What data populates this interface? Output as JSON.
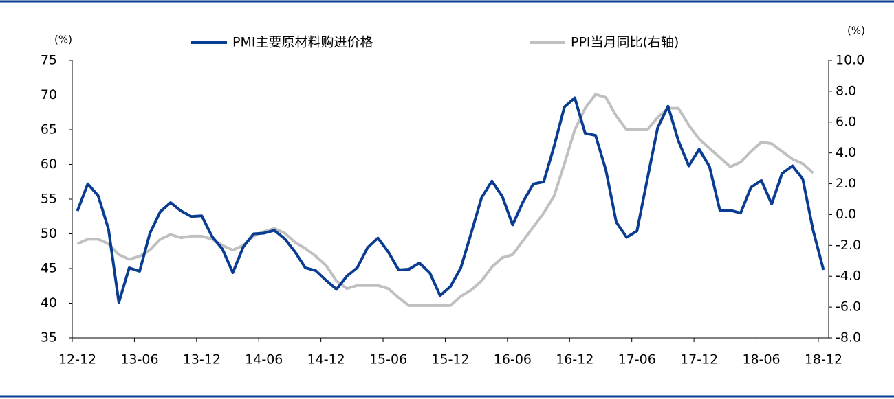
{
  "chart_data": {
    "type": "line",
    "y_unit": "(%)",
    "y2_unit": "(%)",
    "categories": [
      "12-12",
      null,
      null,
      null,
      null,
      null,
      "13-06",
      null,
      null,
      null,
      null,
      null,
      "13-12",
      null,
      null,
      null,
      null,
      null,
      "14-06",
      null,
      null,
      null,
      null,
      null,
      "14-12",
      null,
      null,
      null,
      null,
      null,
      "15-06",
      null,
      null,
      null,
      null,
      null,
      "15-12",
      null,
      null,
      null,
      null,
      null,
      "16-06",
      null,
      null,
      null,
      null,
      null,
      "16-12",
      null,
      null,
      null,
      null,
      null,
      "17-06",
      null,
      null,
      null,
      null,
      null,
      "17-12",
      null,
      null,
      null,
      null,
      null,
      "18-06",
      null,
      null,
      null,
      null,
      null,
      "18-12"
    ],
    "series": [
      {
        "name": "PMI主要原材料购进价格",
        "color": "#0a3d91",
        "axis": "y",
        "values": [
          53.3,
          57.2,
          55.5,
          50.7,
          40.1,
          45.1,
          44.6,
          50.1,
          53.2,
          54.5,
          53.3,
          52.5,
          52.6,
          49.6,
          47.8,
          44.4,
          48.1,
          50.0,
          50.1,
          50.5,
          49.3,
          47.4,
          45.1,
          44.7,
          43.3,
          42.0,
          43.9,
          45.1,
          48.0,
          49.4,
          47.4,
          44.8,
          44.9,
          45.8,
          44.4,
          41.1,
          42.4,
          45.1,
          50.1,
          55.2,
          57.6,
          55.4,
          51.3,
          54.6,
          57.2,
          57.5,
          62.6,
          68.3,
          69.6,
          64.5,
          64.2,
          59.2,
          51.7,
          49.5,
          50.4,
          57.9,
          65.3,
          68.4,
          63.4,
          59.8,
          62.2,
          59.7,
          53.4,
          53.4,
          53.0,
          56.7,
          57.7,
          54.3,
          58.7,
          59.8,
          57.9,
          50.5,
          44.8
        ]
      },
      {
        "name": "PPI当月同比(右轴)",
        "color": "#c0c0c0",
        "axis": "y2",
        "values": [
          -1.9,
          -1.6,
          -1.6,
          -1.9,
          -2.6,
          -2.9,
          -2.7,
          -2.3,
          -1.6,
          -1.3,
          -1.5,
          -1.4,
          -1.4,
          -1.6,
          -2.0,
          -2.3,
          -2.0,
          -1.4,
          -1.1,
          -0.9,
          -1.2,
          -1.8,
          -2.2,
          -2.7,
          -3.3,
          -4.3,
          -4.8,
          -4.6,
          -4.6,
          -4.6,
          -4.8,
          -5.4,
          -5.9,
          -5.9,
          -5.9,
          -5.9,
          -5.9,
          -5.3,
          -4.9,
          -4.3,
          -3.4,
          -2.8,
          -2.6,
          -1.7,
          -0.8,
          0.1,
          1.2,
          3.3,
          5.5,
          6.9,
          7.8,
          7.6,
          6.4,
          5.5,
          5.5,
          5.5,
          6.3,
          6.9,
          6.9,
          5.8,
          4.9,
          4.3,
          3.7,
          3.1,
          3.4,
          4.1,
          4.7,
          4.6,
          4.1,
          3.6,
          3.3,
          2.7,
          null
        ]
      }
    ],
    "ylim": [
      35,
      75
    ],
    "yticks": [
      35,
      40,
      45,
      50,
      55,
      60,
      65,
      70,
      75
    ],
    "y2lim": [
      -8,
      10
    ],
    "y2ticks": [
      {
        "value": -8,
        "label": "-8.0"
      },
      {
        "value": -6,
        "label": "-6.0"
      },
      {
        "value": -4,
        "label": "-4.0"
      },
      {
        "value": -2,
        "label": "-2.0"
      },
      {
        "value": 0,
        "label": "0.0"
      },
      {
        "value": 2,
        "label": "2.0"
      },
      {
        "value": 4,
        "label": "4.0"
      },
      {
        "value": 6,
        "label": "6.0"
      },
      {
        "value": 8,
        "label": "8.0"
      },
      {
        "value": 10,
        "label": "10.0"
      }
    ],
    "grid": false,
    "legend": "top"
  }
}
